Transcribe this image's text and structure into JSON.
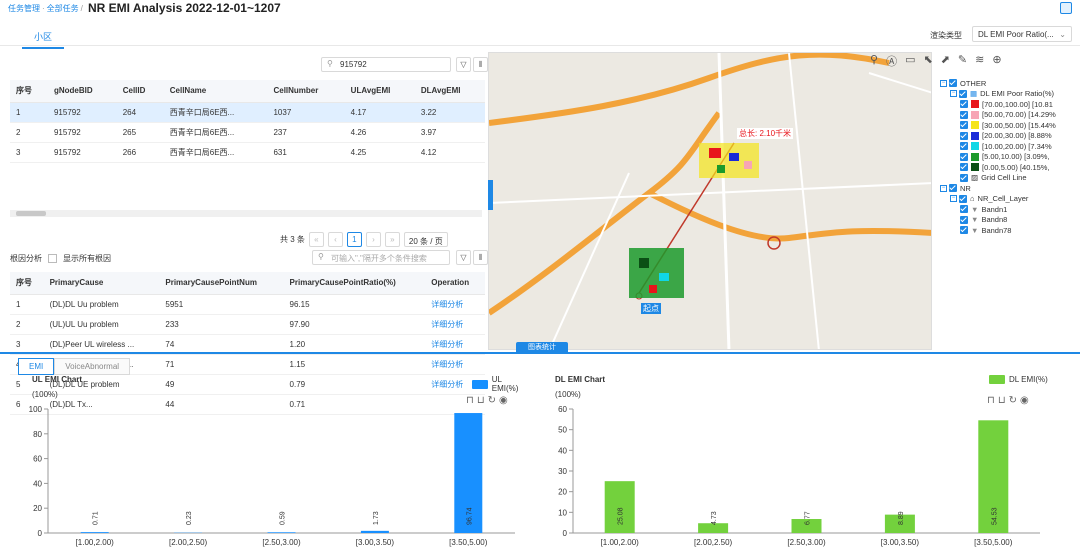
{
  "header": {
    "breadcrumb": [
      "任务管理",
      "全部任务"
    ],
    "separator": "/",
    "title": "NR EMI Analysis 2022-12-01~1207"
  },
  "tabs": {
    "cell": "小区"
  },
  "render_type": {
    "label": "渲染类型",
    "value": "DL EMI Poor Ratio(..."
  },
  "cell_table": {
    "search_value": "915792",
    "headers": [
      "序号",
      "gNodeBID",
      "CellID",
      "CellName",
      "CellNumber",
      "ULAvgEMI",
      "DLAvgEMI"
    ],
    "rows": [
      [
        "1",
        "915792",
        "264",
        "西青辛口局6E西...",
        "1037",
        "4.17",
        "3.22"
      ],
      [
        "2",
        "915792",
        "265",
        "西青辛口局6E西...",
        "237",
        "4.26",
        "3.97"
      ],
      [
        "3",
        "915792",
        "266",
        "西青辛口局6E西...",
        "631",
        "4.25",
        "4.12"
      ]
    ],
    "total": "共 3 条",
    "page": "1",
    "page_size": "20 条 / 页"
  },
  "root_cause": {
    "label": "根因分析",
    "show_all": "显示所有根因",
    "search_placeholder": "可输入\",\"隔开多个条件搜索",
    "headers": [
      "序号",
      "PrimaryCause",
      "PrimaryCausePointNum",
      "PrimaryCausePointRatio(%)",
      "Operation"
    ],
    "rows": [
      [
        "1",
        "(DL)DL Uu problem",
        "5951",
        "96.15",
        "详细分析"
      ],
      [
        "2",
        "(UL)UL Uu problem",
        "233",
        "97.90",
        "详细分析"
      ],
      [
        "3",
        "(DL)Peer UL wireless ...",
        "74",
        "1.20",
        "详细分析"
      ],
      [
        "4",
        "(DL)Peer UL Uu probl...",
        "71",
        "1.15",
        "详细分析"
      ],
      [
        "5",
        "(DL)DL UE problem",
        "49",
        "0.79",
        "详细分析"
      ],
      [
        "6",
        "(DL)DL Tx...",
        "44",
        "0.71",
        ""
      ]
    ]
  },
  "map": {
    "distance": "总长: 2.10千米",
    "stat_button": "图表统计",
    "start_label": "起点"
  },
  "legend": {
    "other": "OTHER",
    "dl_emi": "DL EMI Poor Ratio(%)",
    "ranges": [
      {
        "label": "[70.00,100.00] [10.81",
        "color": "#e8151b"
      },
      {
        "label": "[50.00,70.00) [14.29%",
        "color": "#f7a5b5"
      },
      {
        "label": "[30.00,50.00) [15.44%",
        "color": "#f5e41a"
      },
      {
        "label": "[20.00,30.00) [8.88%",
        "color": "#1a2bd8"
      },
      {
        "label": "[10.00,20.00) [7.34%",
        "color": "#10d7e6"
      },
      {
        "label": "[5.00,10.00) [3.09%,",
        "color": "#1c9a2b"
      },
      {
        "label": "[0.00,5.00) [40.15%,",
        "color": "#0b4f15"
      }
    ],
    "grid": "Grid Cell Line",
    "nr": "NR",
    "nr_layer": "NR_Cell_Layer",
    "bands": [
      "Bandn1",
      "Bandn8",
      "Bandn78"
    ]
  },
  "bottom_tabs": [
    "EMI",
    "VoiceAbnormal"
  ],
  "chart_data": [
    {
      "type": "bar",
      "title": "UL EMI Chart",
      "ylabel": "(100%)",
      "series": [
        {
          "name": "UL EMI(%)",
          "values": [
            0.71,
            0.23,
            0.59,
            1.73,
            96.74
          ]
        }
      ],
      "categories": [
        "[1.00,2.00)",
        "[2.00,2.50)",
        "[2.50,3.00)",
        "[3.00,3.50)",
        "[3.50,5.00)"
      ],
      "ylim": [
        0,
        100
      ],
      "yticks": [
        0,
        20,
        40,
        60,
        80,
        100
      ],
      "color": "#1890ff"
    },
    {
      "type": "bar",
      "title": "DL EMI Chart",
      "ylabel": "(100%)",
      "series": [
        {
          "name": "DL EMI(%)",
          "values": [
            25.08,
            4.73,
            6.77,
            8.89,
            54.53
          ]
        }
      ],
      "categories": [
        "[1.00,2.00)",
        "[2.00,2.50)",
        "[2.50,3.00)",
        "[3.00,3.50)",
        "[3.50,5.00)"
      ],
      "ylim": [
        0,
        60
      ],
      "yticks": [
        0,
        10,
        20,
        30,
        40,
        50,
        60
      ],
      "color": "#73d13d"
    }
  ]
}
